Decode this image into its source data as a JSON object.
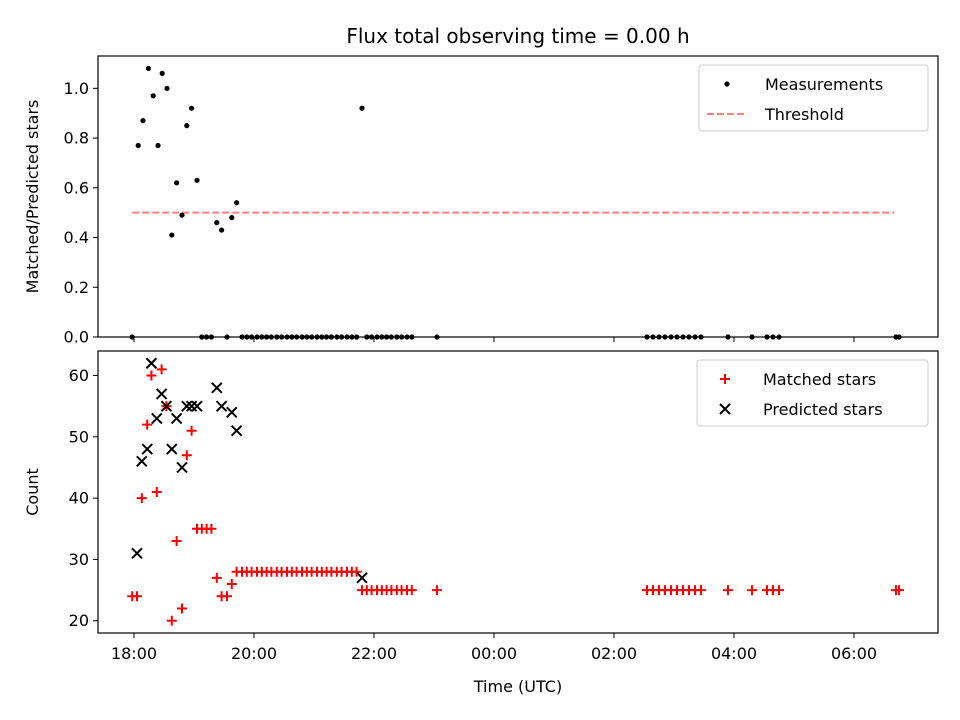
{
  "figure": {
    "title": "Flux total observing time = 0.00 h",
    "xlabel": "Time (UTC)"
  },
  "colors": {
    "measurements": "#000000",
    "threshold": "#ff8080",
    "matched": "#ff0000",
    "predicted": "#000000"
  },
  "chart_data": [
    {
      "type": "scatter",
      "ylabel": "Matched/Predicted stars",
      "xlim_hours": [
        17.4,
        31.4
      ],
      "ylim": [
        0,
        1.13
      ],
      "x_tick_labels": [
        "18:00",
        "20:00",
        "22:00",
        "00:00",
        "02:00",
        "04:00",
        "06:00"
      ],
      "x_ticks_hours": [
        18,
        20,
        22,
        24,
        26,
        28,
        30
      ],
      "y_ticks": [
        0.0,
        0.2,
        0.4,
        0.6,
        0.8,
        1.0
      ],
      "y_tick_labels": [
        "0.0",
        "0.2",
        "0.4",
        "0.6",
        "0.8",
        "1.0"
      ],
      "legend_position": "top-right",
      "legend": [
        "Measurements",
        "Threshold"
      ],
      "threshold": {
        "y": 0.5,
        "x_range_hours": [
          17.97,
          30.67
        ],
        "style": "dashed"
      },
      "series": [
        {
          "name": "Measurements",
          "x_hours": [
            17.97,
            18.07,
            18.15,
            18.24,
            18.32,
            18.4,
            18.47,
            18.55,
            18.63,
            18.71,
            18.8,
            18.88,
            18.96,
            19.05,
            19.13,
            19.21,
            19.29,
            19.38,
            19.46,
            19.55,
            19.63,
            19.71,
            19.8,
            19.88,
            19.96,
            20.05,
            20.13,
            20.21,
            20.29,
            20.38,
            20.46,
            20.55,
            20.63,
            20.71,
            20.8,
            20.88,
            20.96,
            21.05,
            21.13,
            21.21,
            21.29,
            21.38,
            21.46,
            21.55,
            21.63,
            21.71,
            21.8,
            21.88,
            21.96,
            22.05,
            22.13,
            22.21,
            22.29,
            22.38,
            22.46,
            22.55,
            22.63,
            23.05,
            26.55,
            26.65,
            26.75,
            26.85,
            26.95,
            27.05,
            27.15,
            27.25,
            27.35,
            27.45,
            27.9,
            28.3,
            28.55,
            28.65,
            28.75,
            30.7,
            30.75
          ],
          "y": [
            0.0,
            0.77,
            0.87,
            1.08,
            0.97,
            0.77,
            1.06,
            1.0,
            0.41,
            0.62,
            0.49,
            0.85,
            0.92,
            0.63,
            0.0,
            0.0,
            0.0,
            0.46,
            0.43,
            0.0,
            0.48,
            0.54,
            0.0,
            0.0,
            0.0,
            0.0,
            0.0,
            0.0,
            0.0,
            0.0,
            0.0,
            0.0,
            0.0,
            0.0,
            0.0,
            0.0,
            0.0,
            0.0,
            0.0,
            0.0,
            0.0,
            0.0,
            0.0,
            0.0,
            0.0,
            0.0,
            0.92,
            0.0,
            0.0,
            0.0,
            0.0,
            0.0,
            0.0,
            0.0,
            0.0,
            0.0,
            0.0,
            0.0,
            0.0,
            0.0,
            0.0,
            0.0,
            0.0,
            0.0,
            0.0,
            0.0,
            0.0,
            0.0,
            0.0,
            0.0,
            0.0,
            0.0,
            0.0,
            0.0,
            0.0
          ]
        }
      ]
    },
    {
      "type": "scatter",
      "ylabel": "Count",
      "xlim_hours": [
        17.4,
        31.4
      ],
      "ylim": [
        18,
        64
      ],
      "x_tick_labels": [
        "18:00",
        "20:00",
        "22:00",
        "00:00",
        "02:00",
        "04:00",
        "06:00"
      ],
      "x_ticks_hours": [
        18,
        20,
        22,
        24,
        26,
        28,
        30
      ],
      "y_ticks": [
        20,
        30,
        40,
        50,
        60
      ],
      "y_tick_labels": [
        "20",
        "30",
        "40",
        "50",
        "60"
      ],
      "legend_position": "top-right",
      "legend": [
        "Matched stars",
        "Predicted stars"
      ],
      "series": [
        {
          "name": "Matched stars",
          "marker": "plus",
          "x_hours": [
            17.97,
            18.05,
            18.13,
            18.22,
            18.29,
            18.38,
            18.46,
            18.54,
            18.63,
            18.71,
            18.8,
            18.88,
            18.96,
            19.05,
            19.13,
            19.21,
            19.29,
            19.38,
            19.46,
            19.55,
            19.63,
            19.71,
            19.8,
            19.88,
            19.96,
            20.05,
            20.13,
            20.21,
            20.29,
            20.38,
            20.46,
            20.55,
            20.63,
            20.71,
            20.8,
            20.88,
            20.96,
            21.05,
            21.13,
            21.21,
            21.29,
            21.38,
            21.46,
            21.55,
            21.63,
            21.71,
            21.8,
            21.88,
            21.96,
            22.05,
            22.13,
            22.21,
            22.29,
            22.38,
            22.46,
            22.55,
            22.63,
            23.05,
            26.55,
            26.65,
            26.75,
            26.85,
            26.95,
            27.05,
            27.15,
            27.25,
            27.35,
            27.45,
            27.9,
            28.3,
            28.55,
            28.65,
            28.75,
            30.7,
            30.75
          ],
          "y": [
            24,
            24,
            40,
            52,
            60,
            41,
            61,
            55,
            20,
            33,
            22,
            47,
            51,
            35,
            35,
            35,
            35,
            27,
            24,
            24,
            26,
            28,
            28,
            28,
            28,
            28,
            28,
            28,
            28,
            28,
            28,
            28,
            28,
            28,
            28,
            28,
            28,
            28,
            28,
            28,
            28,
            28,
            28,
            28,
            28,
            28,
            25,
            25,
            25,
            25,
            25,
            25,
            25,
            25,
            25,
            25,
            25,
            25,
            25,
            25,
            25,
            25,
            25,
            25,
            25,
            25,
            25,
            25,
            25,
            25,
            25,
            25,
            25,
            25,
            25
          ]
        },
        {
          "name": "Predicted stars",
          "marker": "x",
          "x_hours": [
            18.05,
            18.13,
            18.22,
            18.29,
            18.38,
            18.46,
            18.54,
            18.63,
            18.71,
            18.8,
            18.88,
            18.96,
            19.05,
            19.38,
            19.46,
            19.63,
            19.71,
            21.8
          ],
          "y": [
            31,
            46,
            48,
            62,
            53,
            57,
            55,
            48,
            53,
            45,
            55,
            55,
            55,
            58,
            55,
            54,
            51,
            27
          ]
        }
      ]
    }
  ]
}
